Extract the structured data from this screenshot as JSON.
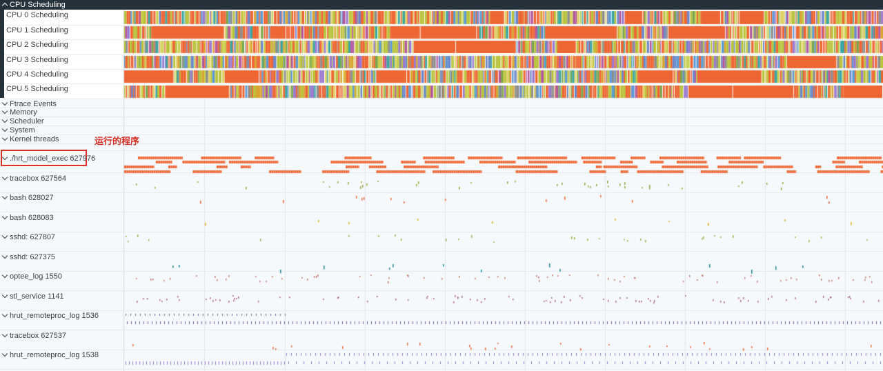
{
  "header": {
    "title": "CPU Scheduling",
    "expanded": true
  },
  "cpu_tracks": [
    {
      "label": "CPU 0 Scheduling"
    },
    {
      "label": "CPU 1 Scheduling"
    },
    {
      "label": "CPU 2 Scheduling"
    },
    {
      "label": "CPU 3 Scheduling"
    },
    {
      "label": "CPU 4 Scheduling"
    },
    {
      "label": "CPU 5 Scheduling"
    }
  ],
  "groups": [
    {
      "label": "Ftrace Events"
    },
    {
      "label": "Memory"
    },
    {
      "label": "Scheduler"
    },
    {
      "label": "System"
    },
    {
      "label": "Kernel threads"
    }
  ],
  "process_tracks": [
    {
      "label": "./hrt_model_exec 627976",
      "highlighted": true
    },
    {
      "label": "tracebox 627564"
    },
    {
      "label": "bash 628027"
    },
    {
      "label": "bash 628083"
    },
    {
      "label": "sshd: 627807"
    },
    {
      "label": "sshd: 627375"
    },
    {
      "label": "optee_log 1550"
    },
    {
      "label": "stl_service 1141"
    },
    {
      "label": "hrut_remoteproc_log 1536"
    },
    {
      "label": "tracebox 627537"
    },
    {
      "label": "hrut_remoteproc_log 1538"
    }
  ],
  "annotation": {
    "text": "运行的程序",
    "color": "#d93025"
  },
  "colors": {
    "slice_orange": "#ee6633",
    "slice_olive": "#b9c23b",
    "slice_blue": "#6a86c8",
    "slice_purple": "#9a7ad0",
    "slice_teal": "#1a8a96",
    "slice_yellow": "#d9b320",
    "header_bg": "#26323b",
    "panel_bg": "#f5f9fb"
  }
}
